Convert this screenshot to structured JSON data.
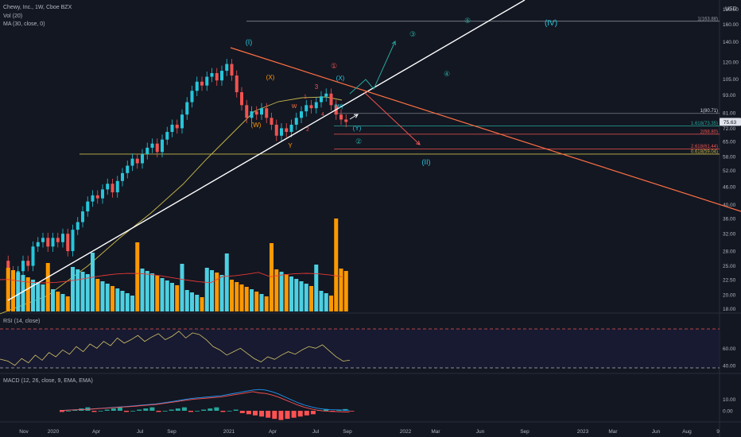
{
  "header": {
    "symbol": "Chewy, Inc., 1W, Cboe BZX",
    "volume": "Vol (20)",
    "ma": "MA (30, close, 0)",
    "rsi": "RSI (14, close)",
    "macd": "MACD (12, 26, close, 9, EMA, EMA)"
  },
  "colors": {
    "background": "#131722",
    "up": "#26c6da",
    "down": "#ef5350",
    "vol_up": "#4dd0e1",
    "vol_down": "#ff9800",
    "trendline": "#ffffff",
    "resistance": "#ff7043",
    "ma": "#c8b84a",
    "volume_ma": "#e53935",
    "rsi": "#d4c26a",
    "macd": "#2196f3",
    "signal": "#ff5252",
    "wave": "#26c6da"
  },
  "icons": {
    "last_price_marker": "price-tag-icon"
  },
  "chart_data": {
    "type": "candlestick",
    "x_ticks": [
      "Nov",
      "2020",
      "Apr",
      "Jul",
      "Sep",
      "2021",
      "Apr",
      "Jul",
      "Sep",
      "2022",
      "Mar",
      "Jun",
      "Sep",
      "2023",
      "Mar",
      "Jun",
      "Aug",
      "9"
    ],
    "y_ticks": [
      "180.00",
      "160.00",
      "140.00",
      "120.00",
      "105.00",
      "93.00",
      "81.00",
      "72.00",
      "65.00",
      "58.00",
      "52.00",
      "46.00",
      "40.00",
      "36.00",
      "32.00",
      "28.00",
      "25.00",
      "22.50",
      "20.00",
      "18.00"
    ],
    "y_unit": "USD",
    "y_scale": "log",
    "last_price": "75.63",
    "price_series_approx": [
      26,
      24,
      23,
      24,
      26,
      25,
      29,
      30,
      31,
      29,
      31,
      30,
      32,
      28,
      33,
      35,
      38,
      41,
      43,
      42,
      45,
      47,
      44,
      48,
      51,
      54,
      57,
      55,
      59,
      62,
      64,
      60,
      66,
      70,
      74,
      72,
      80,
      88,
      96,
      103,
      100,
      107,
      110,
      104,
      112,
      118,
      108,
      95,
      86,
      78,
      82,
      80,
      84,
      78,
      74,
      68,
      72,
      70,
      74,
      78,
      82,
      86,
      84,
      88,
      92,
      94,
      86,
      80,
      77,
      75.6
    ],
    "levels": [
      {
        "label": "1(163.88)",
        "value": 163.88
      },
      {
        "label": "1(80.71)",
        "value": 80.71
      },
      {
        "label": "1.618(73.35)",
        "value": 73.35
      },
      {
        "label": "2(68.80)",
        "value": 68.8
      },
      {
        "label": "2.618(61.44)",
        "value": 61.44
      },
      {
        "label": "0.618(59.04)",
        "value": 59.04
      }
    ],
    "wave_labels": [
      "(I)",
      "(II)",
      "(IV)",
      "(X)",
      "(W)",
      "(Y)",
      "X",
      "W",
      "Y",
      "1",
      "2",
      "3",
      "4",
      "①",
      "②",
      "③",
      "④",
      "⑤",
      "(X)",
      "(W)"
    ],
    "rsi": {
      "ticks": [
        "60.00",
        "40.00"
      ]
    },
    "macd": {
      "ticks": [
        "10.00",
        "0.00"
      ]
    }
  }
}
